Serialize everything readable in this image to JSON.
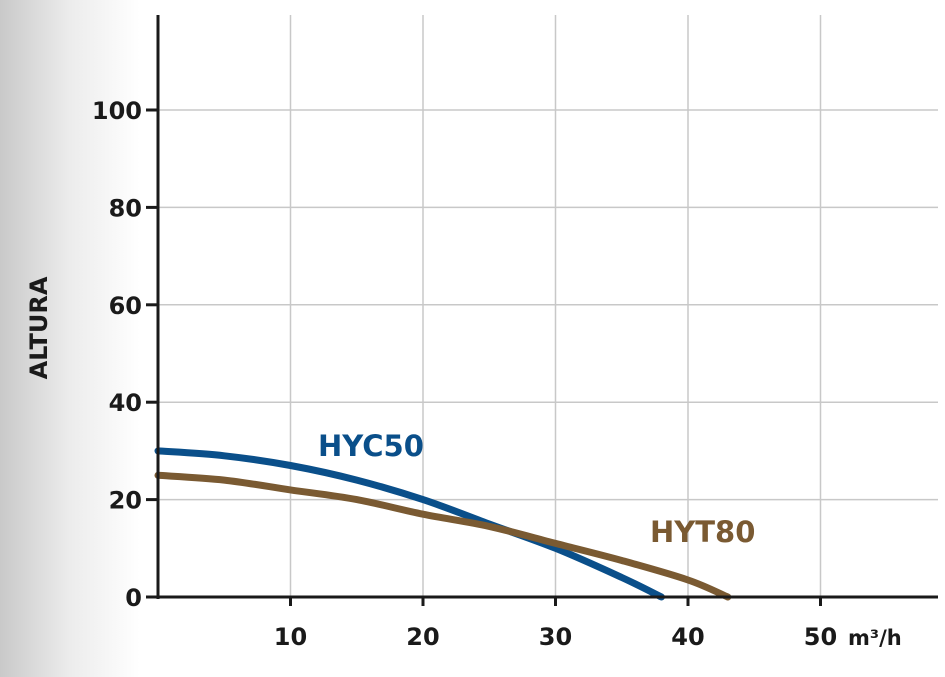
{
  "chart_data": {
    "type": "line",
    "ylabel": "ALTURA",
    "xunit": "m³/h",
    "xlim": [
      0,
      59
    ],
    "ylim": [
      0,
      118
    ],
    "xticks": [
      10,
      20,
      30,
      40,
      50
    ],
    "yticks": [
      0,
      20,
      40,
      60,
      80,
      100
    ],
    "x_gridlines": [
      10,
      20,
      30,
      40,
      50
    ],
    "y_gridlines": [
      20,
      40,
      60,
      80,
      100
    ],
    "grid": true,
    "series": [
      {
        "name": "HYC50",
        "color": "#0a4f8a",
        "x": [
          0,
          5,
          10,
          15,
          20,
          25,
          30,
          35,
          38
        ],
        "y": [
          30,
          29,
          27,
          24,
          20,
          15,
          10,
          4,
          0
        ]
      },
      {
        "name": "HYT80",
        "color": "#7a5a32",
        "x": [
          0,
          5,
          10,
          15,
          20,
          25,
          30,
          35,
          40,
          43
        ],
        "y": [
          25,
          24,
          22,
          20,
          17,
          14.5,
          11,
          7.5,
          3.5,
          0
        ]
      }
    ]
  }
}
